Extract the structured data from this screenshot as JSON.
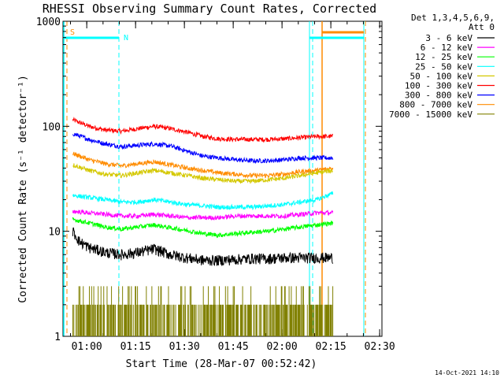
{
  "title": "RHESSI Observing Summary Count Rates, Corrected",
  "xlabel": "Start Time (28-Mar-07 00:52:42)",
  "ylabel": "Corrected Count Rate (s⁻¹ detector⁻¹)",
  "timestamp": "14-Oct-2021 14:10",
  "detector_info": {
    "line1": "Det 1,3,4,5,6,9,",
    "line2": "Att 0"
  },
  "flags": {
    "s_label": "S",
    "n_label": "N"
  },
  "legend": [
    {
      "label": "3 - 6 keV",
      "color": "#000000"
    },
    {
      "label": "6 - 12 keV",
      "color": "#ff00ff"
    },
    {
      "label": "12 - 25 keV",
      "color": "#00ff00"
    },
    {
      "label": "25 - 50 keV",
      "color": "#00ffff"
    },
    {
      "label": "50 - 100 keV",
      "color": "#d4c800"
    },
    {
      "label": "100 - 300 keV",
      "color": "#ff0000"
    },
    {
      "label": "300 - 800 keV",
      "color": "#0000ff"
    },
    {
      "label": "800 - 7000 keV",
      "color": "#ff8c00"
    },
    {
      "label": "7000 - 15000 keV",
      "color": "#808000"
    }
  ],
  "chart_data": {
    "type": "line",
    "title": "RHESSI Observing Summary Count Rates, Corrected",
    "xlabel": "Start Time (28-Mar-07 00:52:42)",
    "ylabel": "Corrected Count Rate (s⁻¹ detector⁻¹)",
    "x_unit": "minutes after 00:52:42",
    "xlim": [
      0,
      98
    ],
    "ylim": [
      1,
      1000
    ],
    "yscale": "log",
    "xticks": [
      {
        "label": "01:00",
        "value": 7.3
      },
      {
        "label": "01:15",
        "value": 22.3
      },
      {
        "label": "01:30",
        "value": 37.3
      },
      {
        "label": "01:45",
        "value": 52.3
      },
      {
        "label": "02:00",
        "value": 67.3
      },
      {
        "label": "02:15",
        "value": 82.3
      },
      {
        "label": "02:30",
        "value": 97.3
      }
    ],
    "yticks": [
      {
        "label": "1",
        "value": 1
      },
      {
        "label": "10",
        "value": 10
      },
      {
        "label": "100",
        "value": 100
      },
      {
        "label": "1000",
        "value": 1000
      }
    ],
    "series": [
      {
        "name": "100 - 300 keV",
        "color": "#ff0000",
        "x": [
          3,
          8,
          13,
          18,
          23,
          28,
          33,
          38,
          43,
          48,
          53,
          58,
          63,
          68,
          73,
          78,
          83
        ],
        "y": [
          115,
          100,
          92,
          90,
          95,
          100,
          95,
          88,
          80,
          76,
          75,
          75,
          75,
          76,
          78,
          80,
          80
        ]
      },
      {
        "name": "300 - 800 keV",
        "color": "#0000ff",
        "x": [
          3,
          8,
          13,
          18,
          23,
          28,
          33,
          38,
          43,
          48,
          53,
          58,
          63,
          68,
          73,
          78,
          83
        ],
        "y": [
          85,
          75,
          68,
          64,
          66,
          68,
          65,
          58,
          52,
          50,
          48,
          47,
          47,
          48,
          50,
          50,
          50
        ]
      },
      {
        "name": "800 - 7000 keV",
        "color": "#ff8c00",
        "x": [
          3,
          8,
          13,
          18,
          23,
          28,
          33,
          38,
          43,
          48,
          53,
          58,
          63,
          68,
          73,
          78,
          83
        ],
        "y": [
          55,
          48,
          44,
          42,
          44,
          46,
          43,
          40,
          38,
          36,
          35,
          34,
          34,
          35,
          37,
          38,
          40
        ]
      },
      {
        "name": "50 - 100 keV",
        "color": "#d4c800",
        "x": [
          3,
          8,
          13,
          18,
          23,
          28,
          33,
          38,
          43,
          48,
          53,
          58,
          63,
          68,
          73,
          78,
          83
        ],
        "y": [
          43,
          38,
          35,
          34,
          36,
          38,
          36,
          34,
          32,
          31,
          30,
          30,
          31,
          32,
          34,
          36,
          38
        ]
      },
      {
        "name": "25 - 50 keV",
        "color": "#00ffff",
        "x": [
          3,
          8,
          13,
          18,
          23,
          28,
          33,
          38,
          43,
          48,
          53,
          58,
          63,
          68,
          73,
          78,
          83
        ],
        "y": [
          22,
          21,
          20,
          19,
          19,
          20,
          19,
          18,
          17.5,
          17,
          17,
          17,
          17.5,
          18,
          19,
          20,
          23
        ]
      },
      {
        "name": "6 - 12 keV",
        "color": "#ff00ff",
        "x": [
          3,
          8,
          13,
          18,
          23,
          28,
          33,
          38,
          43,
          48,
          53,
          58,
          63,
          68,
          73,
          78,
          83
        ],
        "y": [
          15.5,
          15,
          14.5,
          14,
          14,
          14.5,
          14,
          13.5,
          13.5,
          13.5,
          14,
          14,
          14,
          14,
          14.5,
          15,
          15
        ]
      },
      {
        "name": "12 - 25 keV",
        "color": "#00ff00",
        "x": [
          3,
          8,
          13,
          18,
          23,
          28,
          33,
          38,
          43,
          48,
          53,
          58,
          63,
          68,
          73,
          78,
          83
        ],
        "y": [
          13,
          12,
          11,
          10.5,
          11,
          11.5,
          10.8,
          10.2,
          9.5,
          9.2,
          9.5,
          9.8,
          10,
          10.5,
          11,
          11.5,
          12
        ]
      },
      {
        "name": "3 - 6 keV",
        "color": "#000000",
        "x": [
          3,
          5,
          8,
          13,
          18,
          23,
          28,
          33,
          38,
          43,
          48,
          53,
          58,
          63,
          68,
          73,
          78,
          83
        ],
        "y": [
          10,
          8,
          7,
          6.3,
          6,
          6.3,
          6.8,
          6,
          5.6,
          5.3,
          5.3,
          5.4,
          5.5,
          5.5,
          5.6,
          5.6,
          5.6,
          5.6
        ]
      },
      {
        "name": "7000 - 15000 keV",
        "color": "#808000",
        "x": [
          3,
          83
        ],
        "y": [
          1.6,
          1.6
        ]
      }
    ]
  }
}
